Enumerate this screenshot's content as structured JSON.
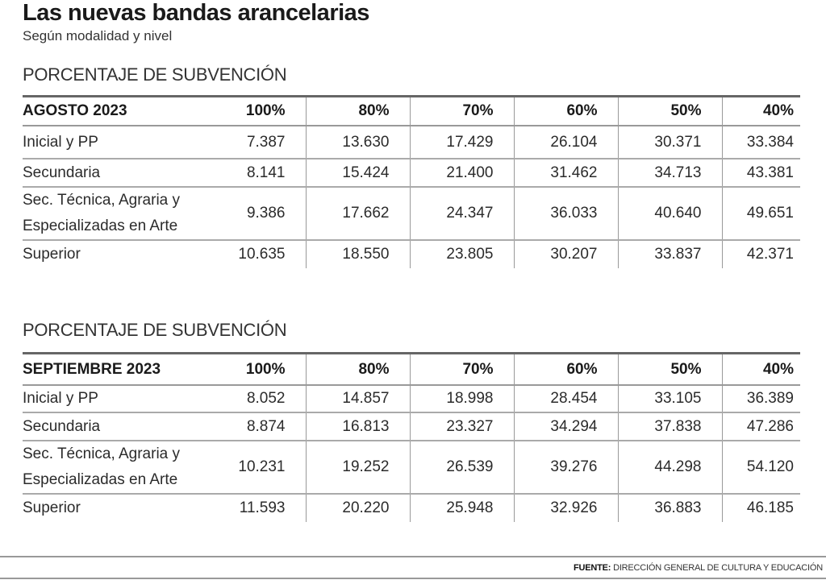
{
  "title": "Las nuevas bandas arancelarias",
  "subtitle": "Según modalidad y nivel",
  "tables": [
    {
      "section_label": "PORCENTAJE DE SUBVENCIÓN",
      "period": "AGOSTO 2023",
      "columns": [
        "100%",
        "80%",
        "70%",
        "60%",
        "50%",
        "40%"
      ],
      "rows": [
        {
          "label": "Inicial y PP",
          "values": [
            "7.387",
            "13.630",
            "17.429",
            "26.104",
            "30.371",
            "33.384"
          ]
        },
        {
          "label": "Secundaria",
          "values": [
            "8.141",
            "15.424",
            "21.400",
            "31.462",
            "34.713",
            "43.381"
          ]
        },
        {
          "label": "Sec. Técnica, Agraria y Especializadas en Arte",
          "values": [
            "9.386",
            "17.662",
            "24.347",
            "36.033",
            "40.640",
            "49.651"
          ]
        },
        {
          "label": "Superior",
          "values": [
            "10.635",
            "18.550",
            "23.805",
            "30.207",
            "33.837",
            "42.371"
          ]
        }
      ]
    },
    {
      "section_label": "PORCENTAJE DE SUBVENCIÓN",
      "period": "SEPTIEMBRE 2023",
      "columns": [
        "100%",
        "80%",
        "70%",
        "60%",
        "50%",
        "40%"
      ],
      "rows": [
        {
          "label": "Inicial y PP",
          "values": [
            "8.052",
            "14.857",
            "18.998",
            "28.454",
            "33.105",
            "36.389"
          ]
        },
        {
          "label": "Secundaria",
          "values": [
            "8.874",
            "16.813",
            "23.327",
            "34.294",
            "37.838",
            "47.286"
          ]
        },
        {
          "label": "Sec. Técnica, Agraria y Especializadas en Arte",
          "values": [
            "10.231",
            "19.252",
            "26.539",
            "39.276",
            "44.298",
            "54.120"
          ]
        },
        {
          "label": "Superior",
          "values": [
            "11.593",
            "20.220",
            "25.948",
            "32.926",
            "36.883",
            "46.185"
          ]
        }
      ]
    }
  ],
  "footer": {
    "source_label": "FUENTE:",
    "source_text": " DIRECCIÓN GENERAL DE CULTURA Y EDUCACIÓN"
  }
}
